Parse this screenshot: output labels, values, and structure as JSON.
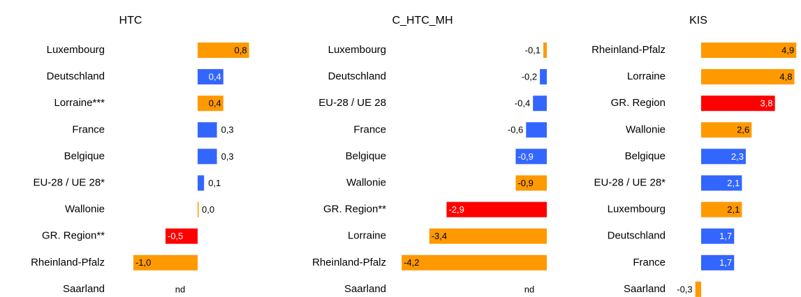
{
  "chart_data": [
    {
      "type": "hbar",
      "title": "HTC",
      "categories": [
        "Luxembourg",
        "Deutschland",
        "Lorraine***",
        "France",
        "Belgique",
        "EU-28 / UE 28*",
        "Wallonie",
        "GR. Region**",
        "Rheinland-Pfalz",
        "Saarland"
      ],
      "values": [
        0.8,
        0.4,
        0.4,
        0.3,
        0.3,
        0.1,
        0.0,
        -0.5,
        -1.0,
        null
      ],
      "value_labels": [
        "0,8",
        "0,4",
        "0,4",
        "0,3",
        "0,3",
        "0,1",
        "0,0",
        "-0,5",
        "-1,0",
        "nd"
      ],
      "colors": [
        "#ff9900",
        "#3366ff",
        "#ff9900",
        "#3366ff",
        "#3366ff",
        "#3366ff",
        "#ff9900",
        "#ff0000",
        "#ff9900",
        "#ff9900"
      ]
    },
    {
      "type": "hbar",
      "title": "C_HTC_MH",
      "categories": [
        "Luxembourg",
        "Deutschland",
        "EU-28 / UE 28",
        "France",
        "Belgique",
        "Wallonie",
        "GR. Region**",
        "Lorraine",
        "Rheinland-Pfalz",
        "Saarland"
      ],
      "values": [
        -0.1,
        -0.2,
        -0.4,
        -0.6,
        -0.9,
        -0.9,
        -2.9,
        -3.4,
        -4.2,
        null
      ],
      "value_labels": [
        "-0,1",
        "-0,2",
        "-0,4",
        "-0,6",
        "-0,9",
        "-0,9",
        "-2,9",
        "-3,4",
        "-4,2",
        "nd"
      ],
      "colors": [
        "#ff9900",
        "#3366ff",
        "#3366ff",
        "#3366ff",
        "#3366ff",
        "#ff9900",
        "#ff0000",
        "#ff9900",
        "#ff9900",
        "#ff9900"
      ]
    },
    {
      "type": "hbar",
      "title": "KIS",
      "categories": [
        "Rheinland-Pfalz",
        "Lorraine",
        "GR. Region",
        "Wallonie",
        "Belgique",
        "EU-28 / UE 28*",
        "Luxembourg",
        "Deutschland",
        "France",
        "Saarland"
      ],
      "values": [
        4.9,
        4.8,
        3.8,
        2.6,
        2.3,
        2.1,
        2.1,
        1.7,
        1.7,
        -0.3
      ],
      "value_labels": [
        "4,9",
        "4,8",
        "3,8",
        "2,6",
        "2,3",
        "2,1",
        "2,1",
        "1,7",
        "1,7",
        "-0,3"
      ],
      "colors": [
        "#ff9900",
        "#ff9900",
        "#ff0000",
        "#ff9900",
        "#3366ff",
        "#3366ff",
        "#ff9900",
        "#3366ff",
        "#3366ff",
        "#ff9900"
      ]
    }
  ]
}
